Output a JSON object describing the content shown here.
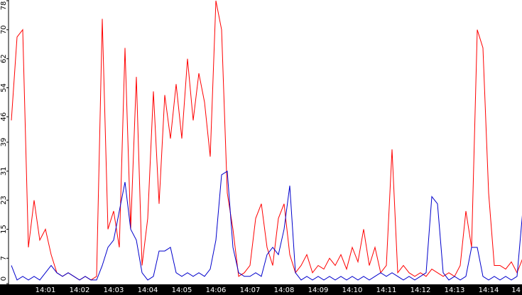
{
  "chart_data": {
    "type": "line",
    "categories": [
      null,
      null,
      null,
      null,
      null,
      null,
      "14:01",
      null,
      null,
      null,
      null,
      null,
      "14:02",
      null,
      null,
      null,
      null,
      null,
      "14:03",
      null,
      null,
      null,
      null,
      null,
      "14:04",
      null,
      null,
      null,
      null,
      null,
      "14:05",
      null,
      null,
      null,
      null,
      null,
      "14:06",
      null,
      null,
      null,
      null,
      null,
      "14:07",
      null,
      null,
      null,
      null,
      null,
      "14:08",
      null,
      null,
      null,
      null,
      null,
      "14:09",
      null,
      null,
      null,
      null,
      null,
      "14:10",
      null,
      null,
      null,
      null,
      null,
      "14:11",
      null,
      null,
      null,
      null,
      null,
      "14:12",
      null,
      null,
      null,
      null,
      null,
      "14:13",
      null,
      null,
      null,
      null,
      null,
      "14:14",
      null,
      null,
      null,
      null,
      null,
      "14"
    ],
    "series": [
      {
        "color": "#ff0000",
        "values": [
          45,
          68,
          70,
          10,
          23,
          12,
          15,
          8,
          3,
          2,
          3,
          2,
          1,
          2,
          1,
          2,
          73,
          15,
          20,
          10,
          65,
          15,
          57,
          5,
          18,
          53,
          22,
          52,
          40,
          55,
          40,
          62,
          45,
          58,
          50,
          35,
          78,
          70,
          25,
          15,
          2,
          3,
          5,
          18,
          22,
          10,
          5,
          18,
          22,
          8,
          3,
          5,
          8,
          3,
          5,
          4,
          7,
          5,
          8,
          4,
          10,
          6,
          15,
          5,
          10,
          3,
          5,
          37,
          3,
          5,
          3,
          2,
          3,
          2,
          4,
          3,
          2,
          3,
          2,
          5,
          20,
          10,
          70,
          65,
          25,
          5,
          5,
          4,
          6,
          3,
          7
        ]
      },
      {
        "color": "#0000cc",
        "values": [
          5,
          1,
          2,
          1,
          2,
          1,
          3,
          5,
          3,
          2,
          3,
          2,
          1,
          2,
          1,
          1,
          5,
          10,
          12,
          20,
          28,
          15,
          12,
          3,
          1,
          2,
          9,
          9,
          10,
          3,
          2,
          3,
          2,
          3,
          2,
          4,
          12,
          30,
          31,
          10,
          3,
          2,
          2,
          3,
          2,
          8,
          10,
          8,
          15,
          27,
          3,
          1,
          2,
          1,
          2,
          1,
          2,
          1,
          2,
          1,
          2,
          1,
          2,
          1,
          2,
          3,
          2,
          3,
          2,
          1,
          2,
          1,
          2,
          3,
          24,
          22,
          3,
          1,
          2,
          1,
          2,
          10,
          10,
          2,
          1,
          2,
          1,
          2,
          1,
          2,
          20
        ]
      }
    ],
    "ylim": [
      0,
      78
    ],
    "yticks": [
      0,
      7,
      15,
      23,
      31,
      39,
      46,
      54,
      62,
      70,
      78
    ]
  }
}
